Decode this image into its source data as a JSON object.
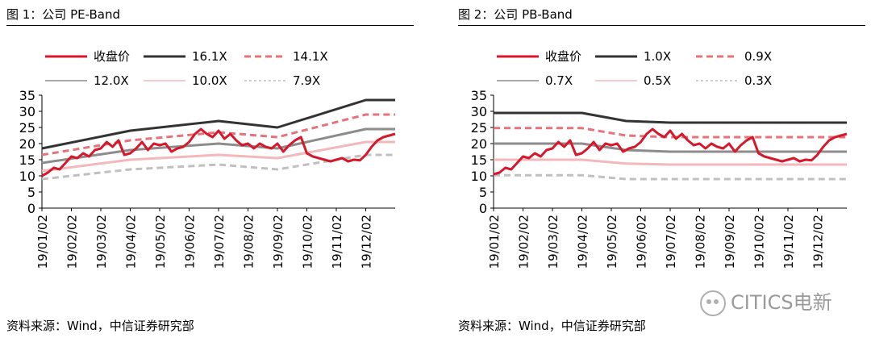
{
  "charts": [
    {
      "figure_title": "图 1：公司 PE-Band",
      "source_text": "资料来源：Wind，中信证券研究部"
    },
    {
      "figure_title": "图 2：公司 PB-Band",
      "source_text": "资料来源：Wind，中信证券研究部"
    }
  ],
  "watermark": {
    "text": "CITICS电新"
  },
  "chart_data": [
    {
      "type": "line",
      "title": "图 1：公司 PE-Band",
      "xlabel": "",
      "ylabel": "",
      "ylim": [
        0,
        35
      ],
      "yticks": [
        0,
        5,
        10,
        15,
        20,
        25,
        30,
        35
      ],
      "xlim": [
        0,
        12
      ],
      "x_tick_labels": [
        "19/01/02",
        "19/02/02",
        "19/03/02",
        "19/04/02",
        "19/05/02",
        "19/06/02",
        "19/07/02",
        "19/08/02",
        "19/09/02",
        "19/10/02",
        "19/11/02",
        "19/12/02"
      ],
      "legend_position": "top",
      "grid": false,
      "series": [
        {
          "name": "收盘价",
          "color": "#d7172a",
          "dash": "solid",
          "width": 3,
          "x": [
            0,
            0.2,
            0.4,
            0.6,
            0.8,
            1,
            1.2,
            1.4,
            1.6,
            1.8,
            2,
            2.2,
            2.4,
            2.6,
            2.8,
            3,
            3.2,
            3.4,
            3.6,
            3.8,
            4,
            4.2,
            4.4,
            4.6,
            4.8,
            5,
            5.2,
            5.4,
            5.6,
            5.8,
            6,
            6.2,
            6.4,
            6.6,
            6.8,
            7,
            7.2,
            7.4,
            7.6,
            7.8,
            8,
            8.2,
            8.4,
            8.6,
            8.8,
            9,
            9.2,
            9.4,
            9.6,
            9.8,
            10,
            10.2,
            10.4,
            10.6,
            10.8,
            11,
            11.2,
            11.4,
            11.6,
            11.8,
            12
          ],
          "y": [
            10,
            11,
            12.5,
            12,
            14,
            16,
            15.5,
            17,
            16,
            18,
            18.5,
            20.5,
            19,
            21,
            16.5,
            17,
            18.5,
            20.5,
            18,
            20,
            19.5,
            20,
            17.5,
            18.5,
            19,
            20.5,
            23,
            24.5,
            23,
            22,
            24,
            21.5,
            23,
            21,
            19.5,
            20,
            18.5,
            20,
            19,
            18.5,
            20,
            17.5,
            19.5,
            21,
            22,
            17,
            16,
            15.5,
            15,
            14.5,
            15,
            15.5,
            14.5,
            15,
            14.8,
            16.5,
            19,
            21,
            22,
            22.5,
            23
          ]
        },
        {
          "name": "16.1X",
          "color": "#333333",
          "dash": "solid",
          "width": 3,
          "x": [
            0,
            3,
            6,
            8,
            11,
            12
          ],
          "y": [
            18.5,
            24,
            27,
            25,
            33.5,
            33.5
          ]
        },
        {
          "name": "14.1X",
          "color": "#e8727a",
          "dash": "dashed",
          "width": 3,
          "x": [
            0,
            3,
            6,
            8,
            11,
            12
          ],
          "y": [
            16.5,
            21,
            23.5,
            22,
            29,
            29
          ]
        },
        {
          "name": "12.0X",
          "color": "#8c8c8c",
          "dash": "solid",
          "width": 3,
          "x": [
            0,
            3,
            6,
            8,
            11,
            12
          ],
          "y": [
            14,
            18,
            20,
            18.5,
            24.5,
            24.5
          ]
        },
        {
          "name": "10.0X",
          "color": "#f4b8bc",
          "dash": "solid",
          "width": 3,
          "x": [
            0,
            3,
            6,
            8,
            11,
            12
          ],
          "y": [
            11.5,
            15,
            16.5,
            15.5,
            20.5,
            20.5
          ]
        },
        {
          "name": "7.9X",
          "color": "#c0c0c0",
          "dash": "dashed",
          "width": 3,
          "x": [
            0,
            3,
            6,
            8,
            11,
            12
          ],
          "y": [
            9,
            12,
            13.5,
            12,
            16.5,
            16.5
          ]
        }
      ]
    },
    {
      "type": "line",
      "title": "图 2：公司 PB-Band",
      "xlabel": "",
      "ylabel": "",
      "ylim": [
        0,
        35
      ],
      "yticks": [
        0,
        5,
        10,
        15,
        20,
        25,
        30,
        35
      ],
      "xlim": [
        0,
        12
      ],
      "x_tick_labels": [
        "19/01/02",
        "19/02/02",
        "19/03/02",
        "19/04/02",
        "19/05/02",
        "19/06/02",
        "19/07/02",
        "19/08/02",
        "19/09/02",
        "19/10/02",
        "19/11/02",
        "19/12/02"
      ],
      "legend_position": "top",
      "grid": false,
      "series": [
        {
          "name": "收盘价",
          "color": "#d7172a",
          "dash": "solid",
          "width": 3,
          "x": [
            0,
            0.2,
            0.4,
            0.6,
            0.8,
            1,
            1.2,
            1.4,
            1.6,
            1.8,
            2,
            2.2,
            2.4,
            2.6,
            2.8,
            3,
            3.2,
            3.4,
            3.6,
            3.8,
            4,
            4.2,
            4.4,
            4.6,
            4.8,
            5,
            5.2,
            5.4,
            5.6,
            5.8,
            6,
            6.2,
            6.4,
            6.6,
            6.8,
            7,
            7.2,
            7.4,
            7.6,
            7.8,
            8,
            8.2,
            8.4,
            8.6,
            8.8,
            9,
            9.2,
            9.4,
            9.6,
            9.8,
            10,
            10.2,
            10.4,
            10.6,
            10.8,
            11,
            11.2,
            11.4,
            11.6,
            11.8,
            12
          ],
          "y": [
            10.5,
            11,
            12.5,
            12,
            14,
            16,
            15.5,
            17,
            16,
            18,
            18.5,
            20.5,
            19,
            21,
            16.5,
            17,
            18.5,
            20.5,
            18,
            20,
            19.5,
            20,
            17.5,
            18.5,
            19,
            20.5,
            23,
            24.5,
            23,
            22,
            24,
            21.5,
            23,
            21,
            19.5,
            20,
            18.5,
            20,
            19,
            18.5,
            20,
            17.5,
            19.5,
            21,
            22,
            17,
            16,
            15.5,
            15,
            14.5,
            15,
            15.5,
            14.5,
            15,
            14.8,
            16.5,
            19,
            21,
            22,
            22.5,
            23
          ]
        },
        {
          "name": "1.0X",
          "color": "#333333",
          "dash": "solid",
          "width": 3,
          "x": [
            0,
            3,
            4.5,
            6,
            12
          ],
          "y": [
            29.5,
            29.5,
            27,
            26.5,
            26.5
          ]
        },
        {
          "name": "0.9X",
          "color": "#e8727a",
          "dash": "dashed",
          "width": 3,
          "x": [
            0,
            3,
            4.5,
            6,
            12
          ],
          "y": [
            24.8,
            24.8,
            22.5,
            22,
            22
          ]
        },
        {
          "name": "0.7X",
          "color": "#8c8c8c",
          "dash": "solid",
          "width": 3,
          "x": [
            0,
            3,
            4.5,
            6,
            12
          ],
          "y": [
            20,
            20,
            18,
            17.5,
            17.5
          ]
        },
        {
          "name": "0.5X",
          "color": "#f4b8bc",
          "dash": "solid",
          "width": 3,
          "x": [
            0,
            3,
            4.5,
            6,
            12
          ],
          "y": [
            15,
            15,
            13.8,
            13.5,
            13.5
          ]
        },
        {
          "name": "0.3X",
          "color": "#c0c0c0",
          "dash": "dashed",
          "width": 3,
          "x": [
            0,
            3,
            4.5,
            6,
            12
          ],
          "y": [
            10.2,
            10.2,
            9,
            9,
            9
          ]
        }
      ]
    }
  ]
}
